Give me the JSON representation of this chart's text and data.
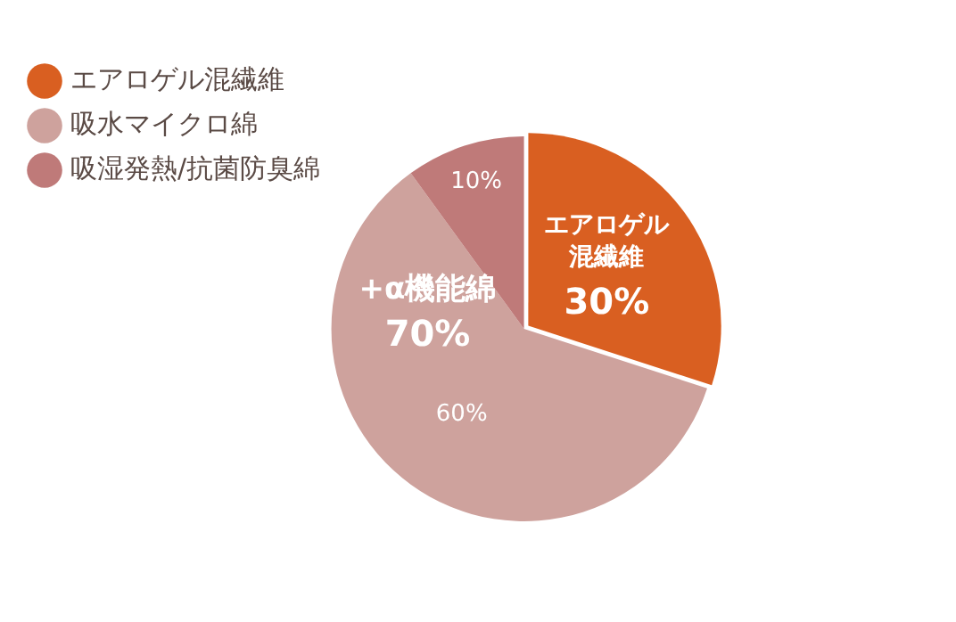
{
  "chart_data": {
    "type": "pie",
    "categories": [
      "エアロゲル混繊維",
      "吸水マイクロ綿",
      "吸湿発熱/抗菌防臭綿"
    ],
    "values": [
      30,
      60,
      10
    ],
    "colors": [
      "#d95f21",
      "#cea29d",
      "#bf7a79"
    ],
    "value_labels": [
      "30%",
      "60%",
      "10%"
    ],
    "annotations": [
      "エアロゲル混繊維",
      "+α機能綿 70%"
    ],
    "legend": "top left"
  }
}
